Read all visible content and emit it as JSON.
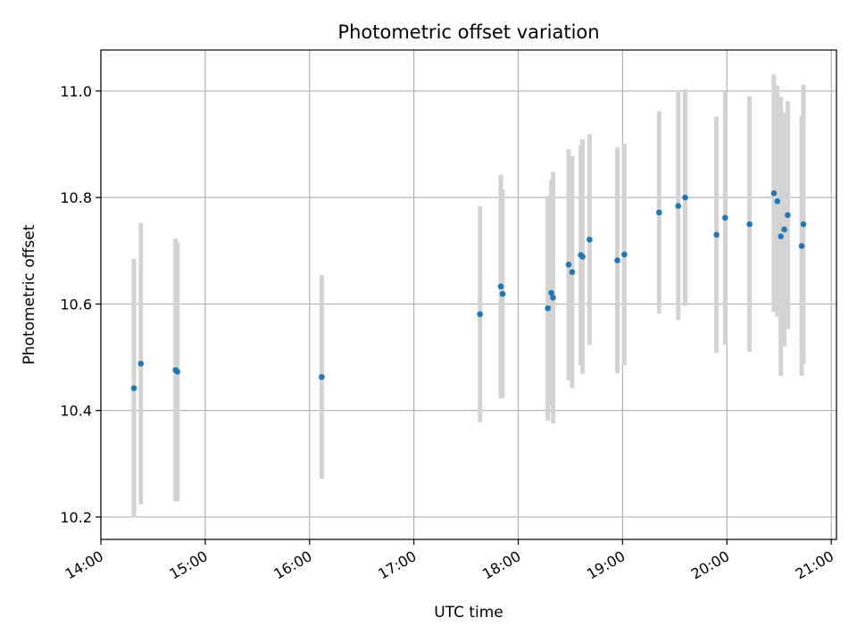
{
  "chart_data": {
    "type": "scatter",
    "title": "Photometric offset variation",
    "xlabel": "UTC time",
    "ylabel": "Photometric offset",
    "grid": true,
    "x_axis": {
      "type": "time",
      "range": [
        "14:00",
        "21:03"
      ],
      "ticks": [
        "14:00",
        "15:00",
        "16:00",
        "17:00",
        "18:00",
        "19:00",
        "20:00",
        "21:00"
      ]
    },
    "y_axis": {
      "range": [
        10.158,
        11.077
      ],
      "ticks": [
        10.2,
        10.4,
        10.6,
        10.8,
        11.0
      ],
      "tick_labels": [
        "10.2",
        "10.4",
        "10.6",
        "10.8",
        "11.0"
      ]
    },
    "colors": {
      "points": "#1f77b4",
      "errorbars": "#d3d3d3",
      "grid": "#b0b0b0"
    },
    "points": [
      {
        "x": "14:19",
        "y": 10.442,
        "err": 0.243
      },
      {
        "x": "14:23",
        "y": 10.488,
        "err": 0.264
      },
      {
        "x": "14:43",
        "y": 10.476,
        "err": 0.247
      },
      {
        "x": "14:44",
        "y": 10.473,
        "err": 0.243
      },
      {
        "x": "16:07",
        "y": 10.463,
        "err": 0.191
      },
      {
        "x": "17:38",
        "y": 10.581,
        "err": 0.203
      },
      {
        "x": "17:50",
        "y": 10.633,
        "err": 0.21
      },
      {
        "x": "17:51",
        "y": 10.619,
        "err": 0.196
      },
      {
        "x": "18:17",
        "y": 10.592,
        "err": 0.211
      },
      {
        "x": "18:19",
        "y": 10.621,
        "err": 0.212
      },
      {
        "x": "18:20",
        "y": 10.612,
        "err": 0.236
      },
      {
        "x": "18:29",
        "y": 10.674,
        "err": 0.217
      },
      {
        "x": "18:31",
        "y": 10.66,
        "err": 0.218
      },
      {
        "x": "18:36",
        "y": 10.692,
        "err": 0.207
      },
      {
        "x": "18:37",
        "y": 10.689,
        "err": 0.22
      },
      {
        "x": "18:41",
        "y": 10.721,
        "err": 0.198
      },
      {
        "x": "18:57",
        "y": 10.682,
        "err": 0.212
      },
      {
        "x": "19:01",
        "y": 10.693,
        "err": 0.208
      },
      {
        "x": "19:21",
        "y": 10.772,
        "err": 0.19
      },
      {
        "x": "19:32",
        "y": 10.784,
        "err": 0.214
      },
      {
        "x": "19:36",
        "y": 10.8,
        "err": 0.203
      },
      {
        "x": "19:54",
        "y": 10.73,
        "err": 0.222
      },
      {
        "x": "19:59",
        "y": 10.762,
        "err": 0.238
      },
      {
        "x": "20:13",
        "y": 10.75,
        "err": 0.24
      },
      {
        "x": "20:27",
        "y": 10.808,
        "err": 0.223
      },
      {
        "x": "20:29",
        "y": 10.793,
        "err": 0.217
      },
      {
        "x": "20:31",
        "y": 10.727,
        "err": 0.262
      },
      {
        "x": "20:33",
        "y": 10.74,
        "err": 0.22
      },
      {
        "x": "20:35",
        "y": 10.767,
        "err": 0.214
      },
      {
        "x": "20:43",
        "y": 10.709,
        "err": 0.244
      },
      {
        "x": "20:44",
        "y": 10.75,
        "err": 0.262
      }
    ]
  }
}
